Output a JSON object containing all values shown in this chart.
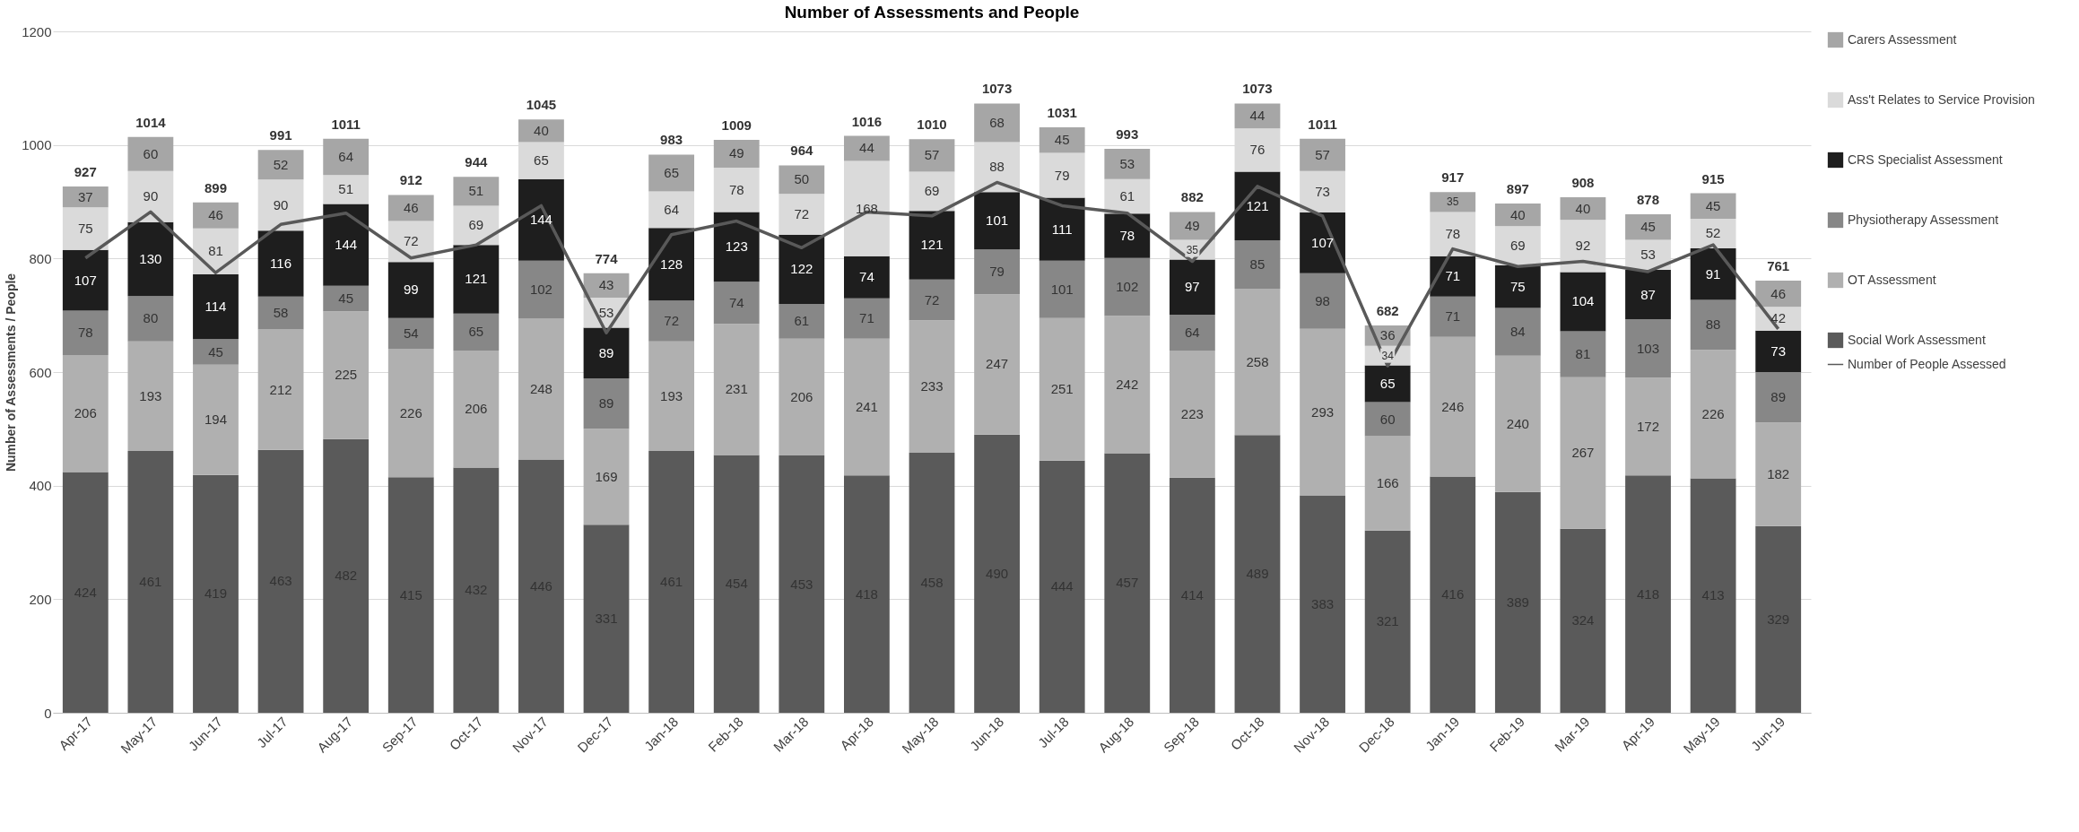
{
  "chart_data": {
    "type": "bar",
    "title": "Number of Assessments and People",
    "ylabel": "Number of Assessments / People",
    "categories": [
      "Apr-17",
      "May-17",
      "Jun-17",
      "Jul-17",
      "Aug-17",
      "Sep-17",
      "Oct-17",
      "Nov-17",
      "Dec-17",
      "Jan-18",
      "Feb-18",
      "Mar-18",
      "Apr-18",
      "May-18",
      "Jun-18",
      "Jul-18",
      "Aug-18",
      "Sep-18",
      "Oct-18",
      "Nov-18",
      "Dec-18",
      "Jan-19",
      "Feb-19",
      "Mar-19",
      "Apr-19",
      "May-19",
      "Jun-19"
    ],
    "stacked": true,
    "grid": "y",
    "legend": "right",
    "ylim": [
      0,
      1200
    ],
    "yticks": [
      0,
      200,
      400,
      600,
      800,
      1000,
      1200
    ],
    "series": [
      {
        "name": "Social Work Assessment",
        "color": "#5a5a5a",
        "values": [
          424,
          461,
          419,
          463,
          482,
          415,
          432,
          446,
          331,
          461,
          454,
          453,
          418,
          458,
          490,
          444,
          457,
          414,
          489,
          383,
          321,
          416,
          389,
          324,
          418,
          413,
          329
        ],
        "value_labels": [
          "424",
          "461",
          "419",
          "463",
          "482",
          "415",
          "432",
          "446",
          "331",
          "461",
          "454",
          "453",
          "418",
          "458",
          "490",
          "444",
          "457",
          "414",
          "489",
          "383",
          "321",
          "416",
          "389",
          "324",
          "418",
          "413",
          "329"
        ]
      },
      {
        "name": "OT Assessment",
        "color": "#b0b0b0",
        "values": [
          206,
          193,
          194,
          212,
          225,
          226,
          206,
          248,
          169,
          193,
          231,
          206,
          241,
          233,
          247,
          251,
          242,
          223,
          258,
          293,
          166,
          246,
          240,
          267,
          172,
          226,
          182
        ],
        "value_labels": [
          "206",
          "193",
          "194",
          "212",
          "225",
          "226",
          "206",
          "248",
          "169",
          "193",
          "231",
          "206",
          "241",
          "233",
          "247",
          "251",
          "242",
          "223",
          "258",
          "293",
          "166",
          "246",
          "240",
          "267",
          "172",
          "226",
          "182"
        ]
      },
      {
        "name": "Physiotherapy Assessment",
        "color": "#878787",
        "values": [
          78,
          80,
          45,
          58,
          45,
          54,
          65,
          102,
          89,
          72,
          74,
          61,
          71,
          72,
          79,
          101,
          102,
          64,
          85,
          98,
          60,
          71,
          84,
          81,
          103,
          88,
          89
        ],
        "value_labels": [
          "78",
          "80",
          "45",
          "58",
          "45",
          "54",
          "65",
          "102",
          "89",
          "72",
          "74",
          "61",
          "71",
          "72",
          "79",
          "101",
          "102",
          "64",
          "85",
          "98",
          "60",
          "71",
          "84",
          "81",
          "103",
          "88",
          "89"
        ]
      },
      {
        "name": "CRS Specialist Assessment",
        "color": "#1e1e1e",
        "values": [
          107,
          130,
          114,
          116,
          144,
          99,
          121,
          144,
          89,
          128,
          123,
          122,
          74,
          121,
          101,
          111,
          78,
          97,
          121,
          107,
          65,
          71,
          75,
          104,
          87,
          91,
          73
        ],
        "value_labels": [
          "107",
          "130",
          "114",
          "116",
          "144",
          "99",
          "121",
          "144",
          "89",
          "128",
          "123",
          "122",
          "74",
          "121",
          "101",
          "111",
          "78",
          "97",
          "121",
          "107",
          "65",
          "71",
          "75",
          "104",
          "87",
          "91",
          "73"
        ]
      },
      {
        "name": "Ass't Relates to Service Provision",
        "color": "#dadada",
        "values": [
          75,
          90,
          81,
          90,
          51,
          72,
          69,
          65,
          53,
          64,
          78,
          72,
          168,
          69,
          88,
          79,
          61,
          35,
          76,
          73,
          34,
          78,
          69,
          92,
          53,
          52,
          42
        ],
        "value_labels": [
          "75",
          "90",
          "81",
          "90",
          "51",
          "72",
          "69",
          "65",
          "53",
          "64",
          "78",
          "72",
          "168",
          "69",
          "88",
          "79",
          "61",
          "35",
          "76",
          "73",
          "34",
          "78",
          "69",
          "92",
          "53",
          "52",
          "42"
        ]
      },
      {
        "name": "Carers Assessment",
        "color": "#a6a6a6",
        "values": [
          37,
          60,
          46,
          52,
          64,
          46,
          51,
          40,
          43,
          65,
          49,
          50,
          44,
          57,
          68,
          45,
          53,
          49,
          44,
          57,
          36,
          35,
          40,
          40,
          45,
          45,
          46
        ],
        "value_labels": [
          "37",
          "60",
          "46",
          "52",
          "64",
          "46",
          "51",
          "40",
          "43",
          "65",
          "49",
          "50",
          "44",
          "57",
          "68",
          "45",
          "53",
          "49",
          "44",
          "57",
          "36",
          "35",
          "40",
          "40",
          "45",
          "45",
          "46"
        ]
      },
      {
        "name": "Number of People Assessed",
        "type": "line",
        "color": "#595959",
        "values": [
          801,
          882,
          775,
          860,
          880,
          801,
          824,
          893,
          669,
          842,
          866,
          819,
          882,
          875,
          934,
          893,
          880,
          795,
          927,
          875,
          611,
          817,
          786,
          795,
          777,
          824,
          676
        ]
      }
    ],
    "totals": [
      "927",
      "1014",
      "899",
      "991",
      "1011",
      "912",
      "944",
      "1045",
      "774",
      "983",
      "1009",
      "964",
      "1016",
      "1010",
      "1073",
      "1031",
      "993",
      "882",
      "1073",
      "1011",
      "682",
      "917",
      "897",
      "908",
      "878",
      "915",
      "761"
    ]
  }
}
